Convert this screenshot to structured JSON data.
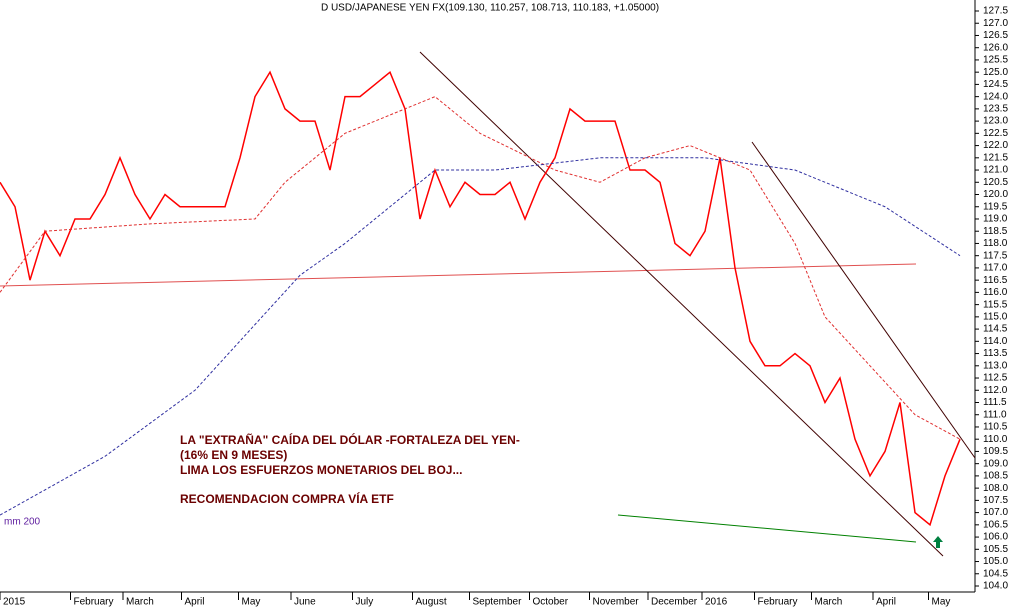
{
  "chart_data": {
    "type": "line",
    "title": "D USD/JAPANESE YEN FX(109.130, 110.257, 108.713, 110.183, +1.05000)",
    "annotations": [
      "LA \"EXTRAÑA\" CAÍDA DEL DÓLAR -FORTALEZA DEL YEN-",
      "(16% EN 9 MESES)",
      "LIMA LOS ESFUERZOS MONETARIOS DEL BOJ...",
      "RECOMENDACION COMPRA VÍA ETF"
    ],
    "ma_label": "mm 200",
    "xlim": [
      0,
      65
    ],
    "ylim": [
      104,
      127.5
    ],
    "xticks": [
      {
        "value": 0,
        "label": "2015"
      },
      {
        "value": 4.7,
        "label": "February"
      },
      {
        "value": 8.2,
        "label": "March"
      },
      {
        "value": 12.1,
        "label": "April"
      },
      {
        "value": 15.9,
        "label": "May"
      },
      {
        "value": 19.4,
        "label": "June"
      },
      {
        "value": 23.5,
        "label": "July"
      },
      {
        "value": 27.5,
        "label": "August"
      },
      {
        "value": 31.3,
        "label": "September"
      },
      {
        "value": 35.3,
        "label": "October"
      },
      {
        "value": 39.3,
        "label": "November"
      },
      {
        "value": 43.2,
        "label": "December"
      },
      {
        "value": 46.8,
        "label": "2016"
      },
      {
        "value": 50.3,
        "label": "February"
      },
      {
        "value": 54.1,
        "label": "March"
      },
      {
        "value": 58.2,
        "label": "April"
      },
      {
        "value": 61.9,
        "label": "May"
      }
    ],
    "yticks": [
      {
        "value": 104,
        "label": "104.0"
      },
      104.5,
      {
        "value": 105,
        "label": "105.0"
      },
      105.5,
      {
        "value": 106,
        "label": "106.0"
      },
      106.5,
      {
        "value": 107,
        "label": "107.0"
      },
      107.5,
      {
        "value": 108,
        "label": "108.0"
      },
      108.5,
      {
        "value": 109,
        "label": "109.0"
      },
      109.5,
      {
        "value": 110,
        "label": "110.0"
      },
      110.5,
      {
        "value": 111,
        "label": "111.0"
      },
      111.5,
      {
        "value": 112,
        "label": "112.0"
      },
      112.5,
      {
        "value": 113,
        "label": "113.0"
      },
      113.5,
      {
        "value": 114,
        "label": "114.0"
      },
      114.5,
      {
        "value": 115,
        "label": "115.0"
      },
      115.5,
      {
        "value": 116,
        "label": "116.0"
      },
      116.5,
      {
        "value": 117,
        "label": "117.0"
      },
      117.5,
      {
        "value": 118,
        "label": "118.0"
      },
      118.5,
      {
        "value": 119,
        "label": "119.0"
      },
      119.5,
      {
        "value": 120,
        "label": "120.0"
      },
      120.5,
      {
        "value": 121,
        "label": "121.0"
      },
      121.5,
      {
        "value": 122,
        "label": "122.0"
      },
      122.5,
      {
        "value": 123,
        "label": "123.0"
      },
      123.5,
      {
        "value": 124,
        "label": "124.0"
      },
      124.5,
      {
        "value": 125,
        "label": "125.0"
      },
      125.5,
      {
        "value": 126,
        "label": "126.0"
      },
      126.5,
      {
        "value": 127,
        "label": "127.0"
      },
      127.5
    ],
    "series": [
      {
        "color": "#ff0000",
        "dash": false,
        "x": [
          0,
          1,
          2,
          3,
          4,
          5,
          6,
          7,
          8,
          9,
          10,
          11,
          12,
          13,
          14,
          15,
          16,
          17,
          18,
          19,
          20,
          21,
          22,
          23,
          24,
          25,
          26,
          27,
          28,
          29,
          30,
          31,
          32,
          33,
          34,
          35,
          36,
          37,
          38,
          39,
          40,
          41,
          42,
          43,
          44,
          45,
          46,
          47,
          48,
          49,
          50,
          51,
          52,
          53,
          54,
          55,
          56,
          57,
          58,
          59,
          60,
          61,
          62,
          63,
          64
        ],
        "values": [
          120.5,
          119.5,
          116.5,
          118.5,
          117.5,
          119,
          119,
          120,
          121.5,
          120,
          119,
          120,
          119.5,
          119.5,
          119.5,
          119.5,
          121.5,
          124,
          125,
          123.5,
          123,
          123,
          121,
          124,
          124,
          124.5,
          125,
          123.5,
          119,
          121,
          119.5,
          120.5,
          120,
          120,
          120.5,
          119,
          120.5,
          121.5,
          123.5,
          123,
          123,
          123,
          121,
          121,
          120.5,
          118,
          117.5,
          118.5,
          121.5,
          117,
          114,
          113,
          113,
          113.5,
          113,
          111.5,
          112.5,
          110,
          108.5,
          109.5,
          111.5,
          107,
          106.5,
          108.5,
          110
        ]
      },
      {
        "color": "#e03030",
        "dash": true,
        "x": [
          0,
          3,
          10,
          17,
          19,
          23,
          27,
          29,
          32,
          37,
          40,
          43,
          46,
          50,
          53,
          55,
          58,
          61,
          64
        ],
        "values": [
          116,
          118.5,
          118.8,
          119,
          120.5,
          122.5,
          123.5,
          124,
          122.5,
          121,
          120.5,
          121.5,
          122,
          121,
          118,
          115,
          113,
          111,
          110
        ]
      },
      {
        "color": "#3030a0",
        "dash": true,
        "x": [
          0,
          7,
          13,
          20,
          23,
          27,
          29,
          33,
          40,
          47,
          53,
          59,
          64
        ],
        "values": [
          106.9,
          109.3,
          112,
          116.7,
          118,
          120,
          121,
          121,
          121.5,
          121.5,
          121,
          119.5,
          117.5
        ]
      }
    ]
  }
}
